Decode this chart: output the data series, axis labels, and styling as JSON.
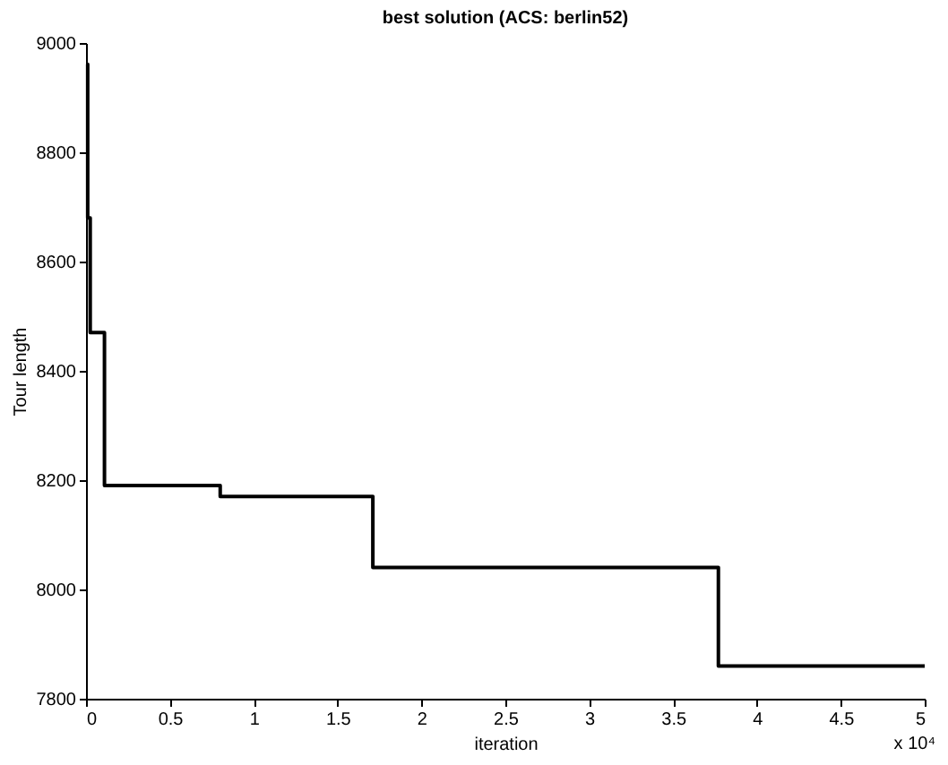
{
  "chart_data": {
    "type": "step",
    "title": "best solution (ACS: berlin52)",
    "xlabel": "iteration",
    "ylabel": "Tour length",
    "x": [
      0,
      0.01,
      0.025,
      0.11,
      0.8,
      1.71,
      3.77,
      5
    ],
    "series": [
      {
        "color": "#000000",
        "values": [
          8961,
          8680,
          8470,
          8190,
          8170,
          8040,
          7860,
          7860
        ]
      }
    ],
    "xlim": [
      0,
      5
    ],
    "xticks": [
      0,
      0.5,
      1,
      1.5,
      2,
      2.5,
      3,
      3.5,
      4,
      4.5,
      5
    ],
    "ylim": [
      7800,
      9000
    ],
    "yticks": [
      7800,
      8000,
      8200,
      8400,
      8600,
      8800,
      9000
    ],
    "annotations": [
      "x 10⁴"
    ],
    "grid": false,
    "line_style": "solid",
    "marker": "none"
  }
}
